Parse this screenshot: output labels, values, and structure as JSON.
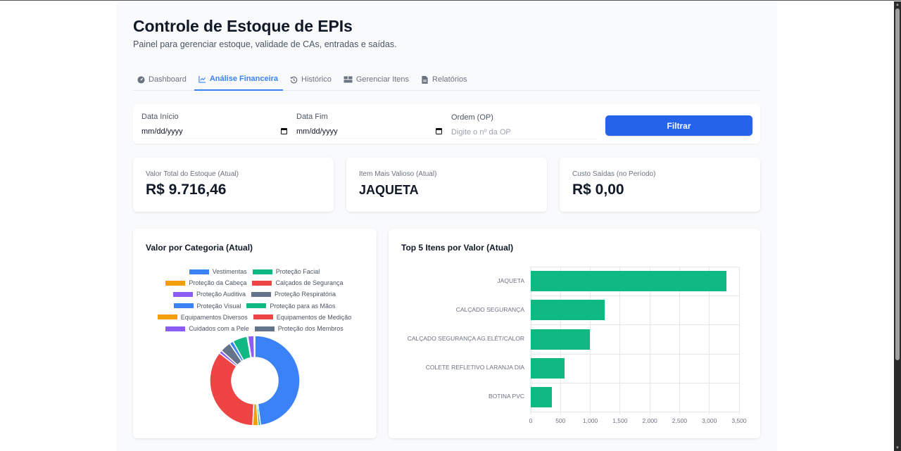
{
  "header": {
    "title": "Controle de Estoque de EPIs",
    "subtitle": "Painel para gerenciar estoque, validade de CAs, entradas e saídas."
  },
  "tabs": [
    {
      "label": "Dashboard",
      "icon": "dashboard-gauge-icon",
      "active": false
    },
    {
      "label": "Análise Financeira",
      "icon": "line-chart-icon",
      "active": true
    },
    {
      "label": "Histórico",
      "icon": "history-icon",
      "active": false
    },
    {
      "label": "Gerenciar Itens",
      "icon": "boxes-icon",
      "active": false
    },
    {
      "label": "Relatórios",
      "icon": "file-report-icon",
      "active": false
    }
  ],
  "filters": {
    "start_date": {
      "label": "Data Início",
      "value": "mm/dd/yyyy"
    },
    "end_date": {
      "label": "Data Fim",
      "value": "mm/dd/yyyy"
    },
    "order": {
      "label": "Ordem (OP)",
      "placeholder": "Digite o nº da OP"
    },
    "filter_button": "Filtrar"
  },
  "stats": [
    {
      "label": "Valor Total do Estoque (Atual)",
      "value": "R$ 9.716,46"
    },
    {
      "label": "Item Mais Valioso (Atual)",
      "value": "JAQUETA"
    },
    {
      "label": "Custo Saídas (no Período)",
      "value": "R$ 0,00"
    }
  ],
  "charts": {
    "category_title": "Valor por Categoria (Atual)",
    "top5_title": "Top 5 Itens por Valor (Atual)"
  },
  "chart_data": [
    {
      "type": "pie",
      "subtype": "doughnut",
      "title": "Valor por Categoria (Atual)",
      "legend_position": "top",
      "categories": [
        "Vestimentas",
        "Proteção Facial",
        "Proteção da Cabeça",
        "Calçados de Segurança",
        "Proteção Auditiva",
        "Proteção Respiratória",
        "Proteção Visual",
        "Proteção para as Mãos",
        "Equipamentos Diversos",
        "Equipamentos de Medição",
        "Cuidados com a Pele",
        "Proteção dos Membros"
      ],
      "colors": [
        "#3b82f6",
        "#10b981",
        "#f59e0b",
        "#ef4444",
        "#8b5cf6",
        "#64748b",
        "#3b82f6",
        "#10b981",
        "#f59e0b",
        "#ef4444",
        "#8b5cf6",
        "#64748b"
      ],
      "values": [
        4660,
        80,
        190,
        3382,
        108,
        378,
        135,
        513,
        27,
        0,
        216,
        27
      ]
    },
    {
      "type": "bar",
      "orientation": "horizontal",
      "title": "Top 5 Itens por Valor (Atual)",
      "categories": [
        "JAQUETA",
        "CALÇADO SEGURANÇA",
        "CALÇADO SEGURANÇA AG.ELÉT/CALOR",
        "COLETE REFLETIVO LARANJA DIA",
        "BOTINA PVC"
      ],
      "values": [
        3285,
        1242,
        992,
        571,
        357
      ],
      "color": "#10b981",
      "xlim": [
        0,
        3500
      ],
      "xticks": [
        "0",
        "500",
        "1,000",
        "1,500",
        "2,000",
        "2,500",
        "3,000",
        "3,500"
      ],
      "grid": true
    }
  ]
}
